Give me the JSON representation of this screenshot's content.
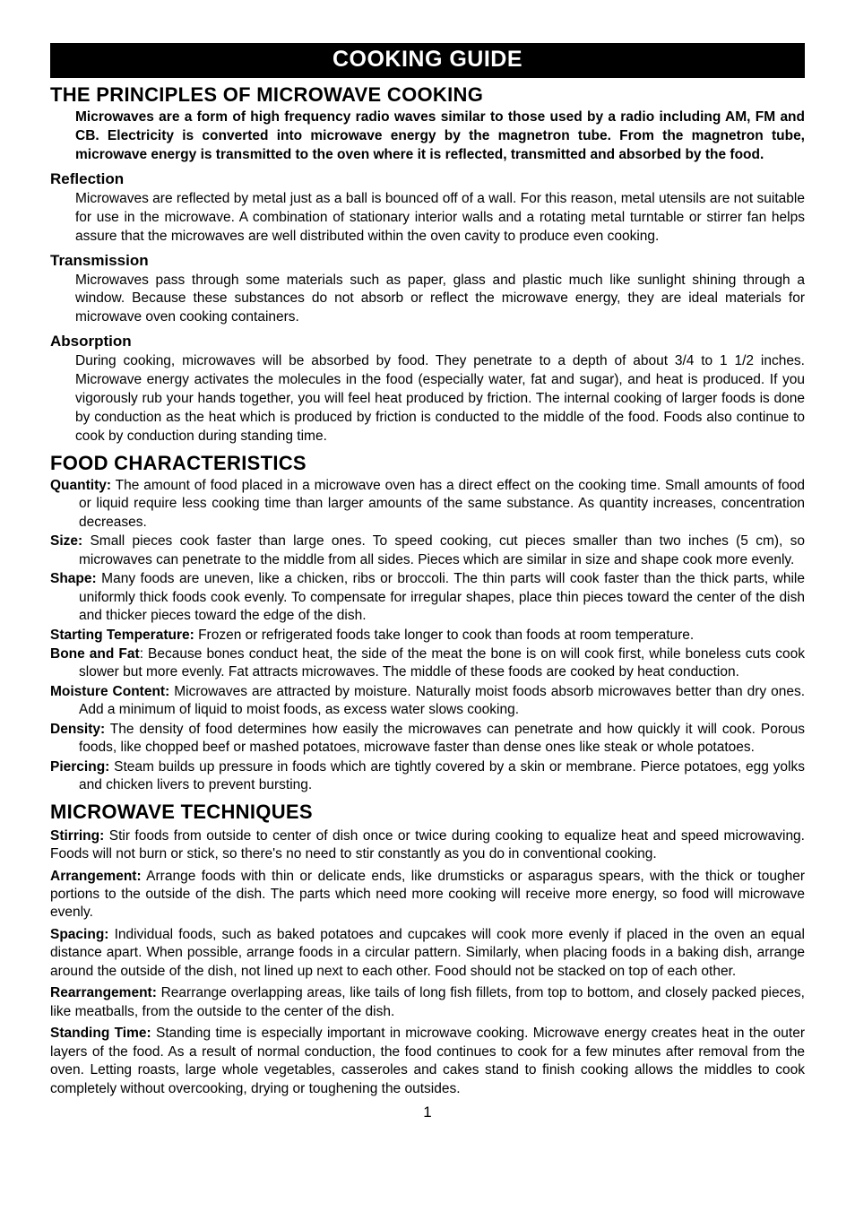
{
  "colors": {
    "background": "#ffffff",
    "text": "#000000",
    "titlebar_bg": "#000000",
    "titlebar_fg": "#ffffff"
  },
  "typography": {
    "base_font": "Arial, Helvetica, sans-serif",
    "title_size": 25,
    "h1_size": 22,
    "h2_size": 17,
    "body_size": 15.5
  },
  "titlebar": "COOKING GUIDE",
  "s1": {
    "heading": "THE PRINCIPLES OF MICROWAVE COOKING",
    "intro": "Microwaves are a form of high frequency radio waves similar to those used by a radio including AM, FM and CB. Electricity is converted into microwave energy by the magnetron tube. From the magnetron tube, microwave energy is transmitted to the oven where it is reflected, transmitted and absorbed by the food.",
    "reflection_h": "Reflection",
    "reflection_p": "Microwaves are reflected by metal just as a ball is bounced off of a wall. For this reason, metal utensils are not suitable for use in the microwave. A combination of stationary interior walls and a rotating metal turntable or stirrer fan helps assure that the microwaves are well distributed within the oven cavity to produce even cooking.",
    "transmission_h": "Transmission",
    "transmission_p": "Microwaves pass through some materials such as paper, glass and plastic much like sunlight shining through a window. Because these substances do not absorb or reflect the microwave energy, they are ideal materials for microwave oven cooking containers.",
    "absorption_h": "Absorption",
    "absorption_p": "During cooking, microwaves will be absorbed by food. They penetrate to a depth of about 3/4 to 1 1/2  inches. Microwave energy activates the molecules in the food (especially water, fat and sugar), and heat is produced. If you vigorously rub your hands together, you will feel heat produced by friction. The internal cooking of larger foods is done by conduction as the heat which is produced by friction is conducted to the middle of the food. Foods also continue to cook by conduction during standing time."
  },
  "s2": {
    "heading": "FOOD CHARACTERISTICS",
    "items": [
      {
        "label": "Quantity:",
        "text": " The amount of food placed in a microwave oven has a direct effect on the cooking time. Small amounts of food or liquid require less cooking time than larger amounts of the same substance. As quantity increases, concentration decreases."
      },
      {
        "label": "Size:",
        "text": " Small pieces cook faster than large ones. To speed cooking, cut pieces smaller than two inches (5 cm), so microwaves can penetrate to the middle from all sides. Pieces which are similar in size and shape cook more evenly."
      },
      {
        "label": "Shape:",
        "text": " Many foods are uneven, like a chicken, ribs or broccoli. The thin parts will cook faster than the thick parts, while uniformly thick foods cook evenly. To compensate for irregular shapes, place thin pieces toward the center of the dish and thicker pieces toward the edge of the dish."
      },
      {
        "label": "Starting Temperature:",
        "text": " Frozen or refrigerated foods take longer to cook than foods at room temperature."
      },
      {
        "label": "Bone and Fat",
        "text": ": Because bones conduct heat, the side of the meat the bone is on will cook first, while boneless cuts cook slower but more evenly. Fat attracts microwaves. The middle of these foods are cooked by heat conduction."
      },
      {
        "label": "Moisture Content:",
        "text": " Microwaves are attracted by moisture. Naturally moist foods absorb microwaves better than dry ones. Add a minimum of liquid to moist foods, as excess water slows cooking."
      },
      {
        "label": "Density:",
        "text": " The density of food determines how easily the microwaves can penetrate and how quickly it will cook. Porous foods, like chopped beef or mashed potatoes, microwave faster than dense ones like steak or whole potatoes."
      },
      {
        "label": "Piercing:",
        "text": " Steam builds up pressure in foods which are tightly covered by a skin or membrane. Pierce potatoes, egg yolks and chicken livers to prevent bursting."
      }
    ]
  },
  "s3": {
    "heading": "MICROWAVE TECHNIQUES",
    "items": [
      {
        "label": "Stirring:",
        "text": " Stir foods from outside to center of dish once or twice during cooking to equalize heat and speed microwaving. Foods will not burn or stick, so there's no need to stir constantly as you do in conventional cooking."
      },
      {
        "label": "Arrangement:",
        "text": " Arrange foods with thin or delicate ends, like drumsticks or asparagus spears, with the thick or tougher portions to the outside of the dish. The parts which need more cooking will receive more energy, so food will microwave evenly."
      },
      {
        "label": "Spacing:",
        "text": " Individual foods, such as baked potatoes and cupcakes will cook more evenly if placed in the oven an equal distance apart. When possible, arrange foods in a circular pattern. Similarly, when placing foods in a baking dish, arrange around the outside of the dish, not lined up next to each other. Food should not be stacked on top of each other."
      },
      {
        "label": "Rearrangement:",
        "text": " Rearrange overlapping areas, like tails of long fish fillets, from top to bottom, and closely packed pieces, like meatballs, from the outside to the center of the dish."
      },
      {
        "label": "Standing Time:",
        "text": " Standing time is especially important in microwave cooking. Microwave energy creates heat in the outer layers of the food. As a result of normal conduction, the food continues to cook for a few minutes after removal from the oven. Letting roasts, large whole vegetables, casseroles and cakes stand to finish cooking allows the middles to cook completely without overcooking, drying or toughening the outsides."
      }
    ]
  },
  "page_number": "1"
}
